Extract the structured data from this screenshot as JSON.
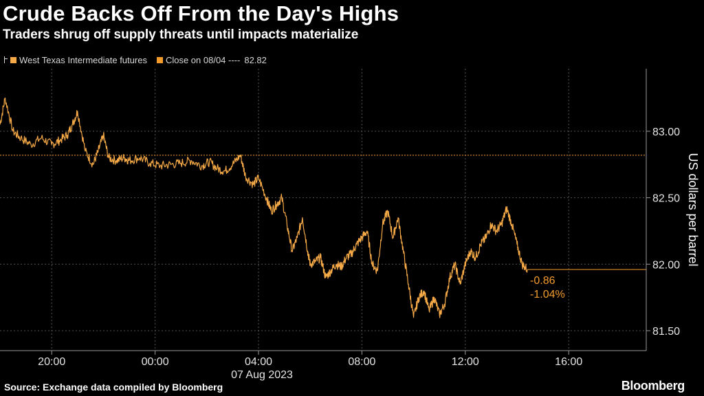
{
  "header": {
    "title": "Crude Backs Off From the Day's Highs",
    "subtitle": "Traders shrug off supply threats until impacts materialize"
  },
  "legend": {
    "items": [
      {
        "label": "West Texas Intermediate futures",
        "color": "#f5a947"
      },
      {
        "label": "Close on 08/04 ---- ",
        "value": "82.82",
        "color": "#f39c2e"
      }
    ]
  },
  "footer": {
    "source": "Source: Exchange data compiled by Bloomberg",
    "brand": "Bloomberg"
  },
  "colors": {
    "background": "#000000",
    "series": "#f5a947",
    "reference": "#f39c2e",
    "grid": "#555555",
    "text": "#ffffff",
    "axis_text": "#e6e6e6"
  },
  "chart_data": {
    "type": "line",
    "title": "Crude Backs Off From the Day's Highs",
    "subtitle": "Traders shrug off supply threats until impacts materialize",
    "xlabel": "",
    "ylabel": "US dollars per barrel",
    "x_tick_labels": [
      "20:00",
      "00:00",
      "04:00",
      "08:00",
      "12:00",
      "16:00"
    ],
    "x_tick_hours": [
      20,
      24,
      28,
      32,
      36,
      40
    ],
    "x_date_label": "07 Aug 2023",
    "xlim_hours": [
      18,
      43
    ],
    "y_tick_labels": [
      "81.50",
      "82.00",
      "82.50",
      "83.00"
    ],
    "y_ticks": [
      81.5,
      82.0,
      82.5,
      83.0
    ],
    "ylim": [
      81.35,
      83.47
    ],
    "grid": true,
    "legend_position": "top-left",
    "y_axis_side": "right",
    "reference_line": {
      "name": "Close on 08/04",
      "value": 82.82
    },
    "annotations": {
      "change": "-0.86",
      "change_pct": "-1.04%"
    },
    "last_value": 81.96,
    "series": [
      {
        "name": "West Texas Intermediate futures",
        "x_hours": [
          18.0,
          18.2,
          18.5,
          18.8,
          19.2,
          19.6,
          20.0,
          20.3,
          20.6,
          20.8,
          21.0,
          21.3,
          21.6,
          21.8,
          22.0,
          22.2,
          22.5,
          22.8,
          23.0,
          23.4,
          23.8,
          24.2,
          24.6,
          25.0,
          25.4,
          25.8,
          26.1,
          26.4,
          26.7,
          27.0,
          27.3,
          27.5,
          27.8,
          28.0,
          28.3,
          28.5,
          28.7,
          28.9,
          29.1,
          29.3,
          29.5,
          29.7,
          29.9,
          30.0,
          30.2,
          30.4,
          30.6,
          30.8,
          31.0,
          31.2,
          31.4,
          31.6,
          31.8,
          32.0,
          32.2,
          32.4,
          32.6,
          32.8,
          33.0,
          33.2,
          33.4,
          33.6,
          33.8,
          34.0,
          34.2,
          34.4,
          34.6,
          34.8,
          35.0,
          35.2,
          35.4,
          35.6,
          35.8,
          36.0,
          36.2,
          36.4,
          36.6,
          36.8,
          37.0,
          37.2,
          37.4,
          37.6,
          37.8,
          38.0,
          38.2,
          38.4
        ],
        "values": [
          83.05,
          83.25,
          83.0,
          82.95,
          82.9,
          82.95,
          82.9,
          82.93,
          82.97,
          83.05,
          83.15,
          82.85,
          82.75,
          82.85,
          82.97,
          82.8,
          82.78,
          82.8,
          82.78,
          82.8,
          82.76,
          82.74,
          82.75,
          82.76,
          82.78,
          82.74,
          82.77,
          82.72,
          82.7,
          82.75,
          82.82,
          82.66,
          82.6,
          82.65,
          82.5,
          82.4,
          82.45,
          82.5,
          82.3,
          82.1,
          82.2,
          82.35,
          82.1,
          82.0,
          82.02,
          82.05,
          81.9,
          81.95,
          82.0,
          81.98,
          82.05,
          82.08,
          82.15,
          82.2,
          82.25,
          82.0,
          81.95,
          82.3,
          82.4,
          82.2,
          82.35,
          82.1,
          81.85,
          81.6,
          81.75,
          81.8,
          81.65,
          81.75,
          81.62,
          81.7,
          81.9,
          82.0,
          81.85,
          82.0,
          82.1,
          82.05,
          82.15,
          82.2,
          82.3,
          82.25,
          82.3,
          82.42,
          82.3,
          82.15,
          82.0,
          81.96
        ]
      }
    ]
  }
}
